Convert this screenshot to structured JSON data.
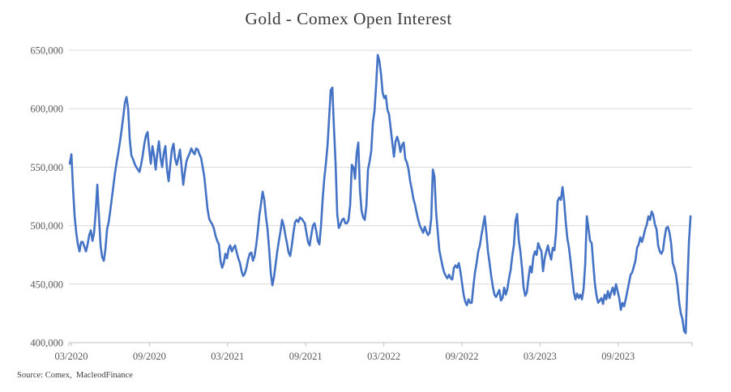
{
  "title": "Gold - Comex Open Interest",
  "source_note": "Source: Comex,  MacleodFinance",
  "colors": {
    "line": "#4472C4",
    "gridline": "#D9D9D9",
    "axis": "#BFBFBF",
    "tick_label": "#595959",
    "title": "#3B3B3B",
    "background": "#FFFFFF"
  },
  "chart_data": {
    "type": "line",
    "title": "Gold - Comex Open Interest",
    "xlabel": "",
    "ylabel": "",
    "legend": "none",
    "grid": "horizontal",
    "ylim": [
      400000,
      650000
    ],
    "y_ticks": [
      {
        "value": 400000,
        "label": "400,000"
      },
      {
        "value": 450000,
        "label": "450,000"
      },
      {
        "value": 500000,
        "label": "500,000"
      },
      {
        "value": 550000,
        "label": "550,000"
      },
      {
        "value": 600000,
        "label": "600,000"
      },
      {
        "value": 650000,
        "label": "650,000"
      }
    ],
    "x_ticks": [
      {
        "year": 2020.167,
        "label": "03/2020"
      },
      {
        "year": 2020.667,
        "label": "09/2020"
      },
      {
        "year": 2021.167,
        "label": "03/2021"
      },
      {
        "year": 2021.667,
        "label": "09/2021"
      },
      {
        "year": 2022.167,
        "label": "03/2022"
      },
      {
        "year": 2022.667,
        "label": "09/2022"
      },
      {
        "year": 2023.167,
        "label": "03/2023"
      },
      {
        "year": 2023.667,
        "label": "09/2023"
      }
    ],
    "series": [
      {
        "name": "Comex gold open interest",
        "color": "#4472C4",
        "sampling": "uniform, approximately weekly",
        "x_start_year": 2020.157,
        "x_end_year": 2024.13,
        "values_unit": "contracts",
        "values_scale": 1000,
        "values": [
          553,
          561,
          532,
          508,
          494,
          484,
          478,
          486,
          486,
          482,
          478,
          484,
          492,
          496,
          487,
          494,
          512,
          535,
          508,
          483,
          473,
          470,
          480,
          497,
          503,
          513,
          524,
          535,
          546,
          555,
          563,
          572,
          582,
          593,
          605,
          610,
          600,
          574,
          560,
          557,
          553,
          550,
          548,
          546,
          552,
          560,
          570,
          577,
          580,
          565,
          553,
          568,
          560,
          548,
          562,
          572,
          558,
          550,
          562,
          568,
          548,
          538,
          552,
          565,
          570,
          557,
          552,
          558,
          565,
          550,
          535,
          546,
          555,
          559,
          562,
          566,
          563,
          561,
          566,
          565,
          561,
          558,
          550,
          542,
          528,
          514,
          506,
          503,
          501,
          497,
          491,
          487,
          484,
          470,
          464,
          468,
          476,
          472,
          480,
          483,
          478,
          481,
          483,
          477,
          472,
          468,
          461,
          457,
          459,
          464,
          471,
          476,
          477,
          470,
          474,
          483,
          495,
          509,
          519,
          529,
          522,
          508,
          497,
          480,
          460,
          449,
          456,
          467,
          478,
          487,
          495,
          505,
          500,
          492,
          485,
          477,
          474,
          483,
          494,
          503,
          505,
          503,
          507,
          506,
          504,
          502,
          494,
          486,
          483,
          492,
          500,
          502,
          496,
          487,
          484,
          500,
          522,
          540,
          553,
          568,
          592,
          616,
          618,
          583,
          553,
          510,
          498,
          501,
          505,
          506,
          502,
          502,
          505,
          518,
          552,
          550,
          540,
          562,
          571,
          531,
          513,
          507,
          505,
          517,
          548,
          555,
          564,
          588,
          598,
          620,
          646,
          641,
          630,
          614,
          609,
          611,
          599,
          595,
          583,
          571,
          559,
          572,
          576,
          571,
          563,
          569,
          571,
          557,
          554,
          548,
          538,
          531,
          523,
          518,
          511,
          505,
          500,
          497,
          494,
          499,
          495,
          492,
          494,
          506,
          548,
          542,
          512,
          495,
          479,
          472,
          465,
          460,
          457,
          455,
          458,
          455,
          454,
          464,
          466,
          464,
          468,
          461,
          451,
          441,
          435,
          432,
          437,
          434,
          434,
          448,
          460,
          468,
          478,
          483,
          492,
          500,
          508,
          494,
          478,
          468,
          457,
          448,
          441,
          439,
          442,
          445,
          436,
          438,
          447,
          441,
          446,
          455,
          462,
          474,
          483,
          504,
          510,
          488,
          478,
          464,
          447,
          440,
          443,
          455,
          465,
          460,
          473,
          478,
          475,
          485,
          481,
          478,
          461,
          472,
          478,
          483,
          476,
          471,
          481,
          479,
          494,
          521,
          524,
          522,
          533,
          521,
          503,
          489,
          481,
          469,
          456,
          443,
          437,
          442,
          438,
          441,
          437,
          446,
          467,
          508,
          498,
          487,
          485,
          467,
          450,
          440,
          434,
          436,
          438,
          433,
          441,
          437,
          444,
          438,
          443,
          447,
          441,
          450,
          444,
          438,
          428,
          434,
          431,
          437,
          444,
          451,
          458,
          460,
          465,
          470,
          481,
          484,
          490,
          486,
          491,
          497,
          501,
          508,
          505,
          512,
          509,
          501,
          497,
          483,
          478,
          476,
          479,
          490,
          498,
          499,
          494,
          485,
          468,
          464,
          458,
          448,
          434,
          425,
          420,
          410,
          408,
          448,
          486,
          508
        ]
      }
    ]
  }
}
